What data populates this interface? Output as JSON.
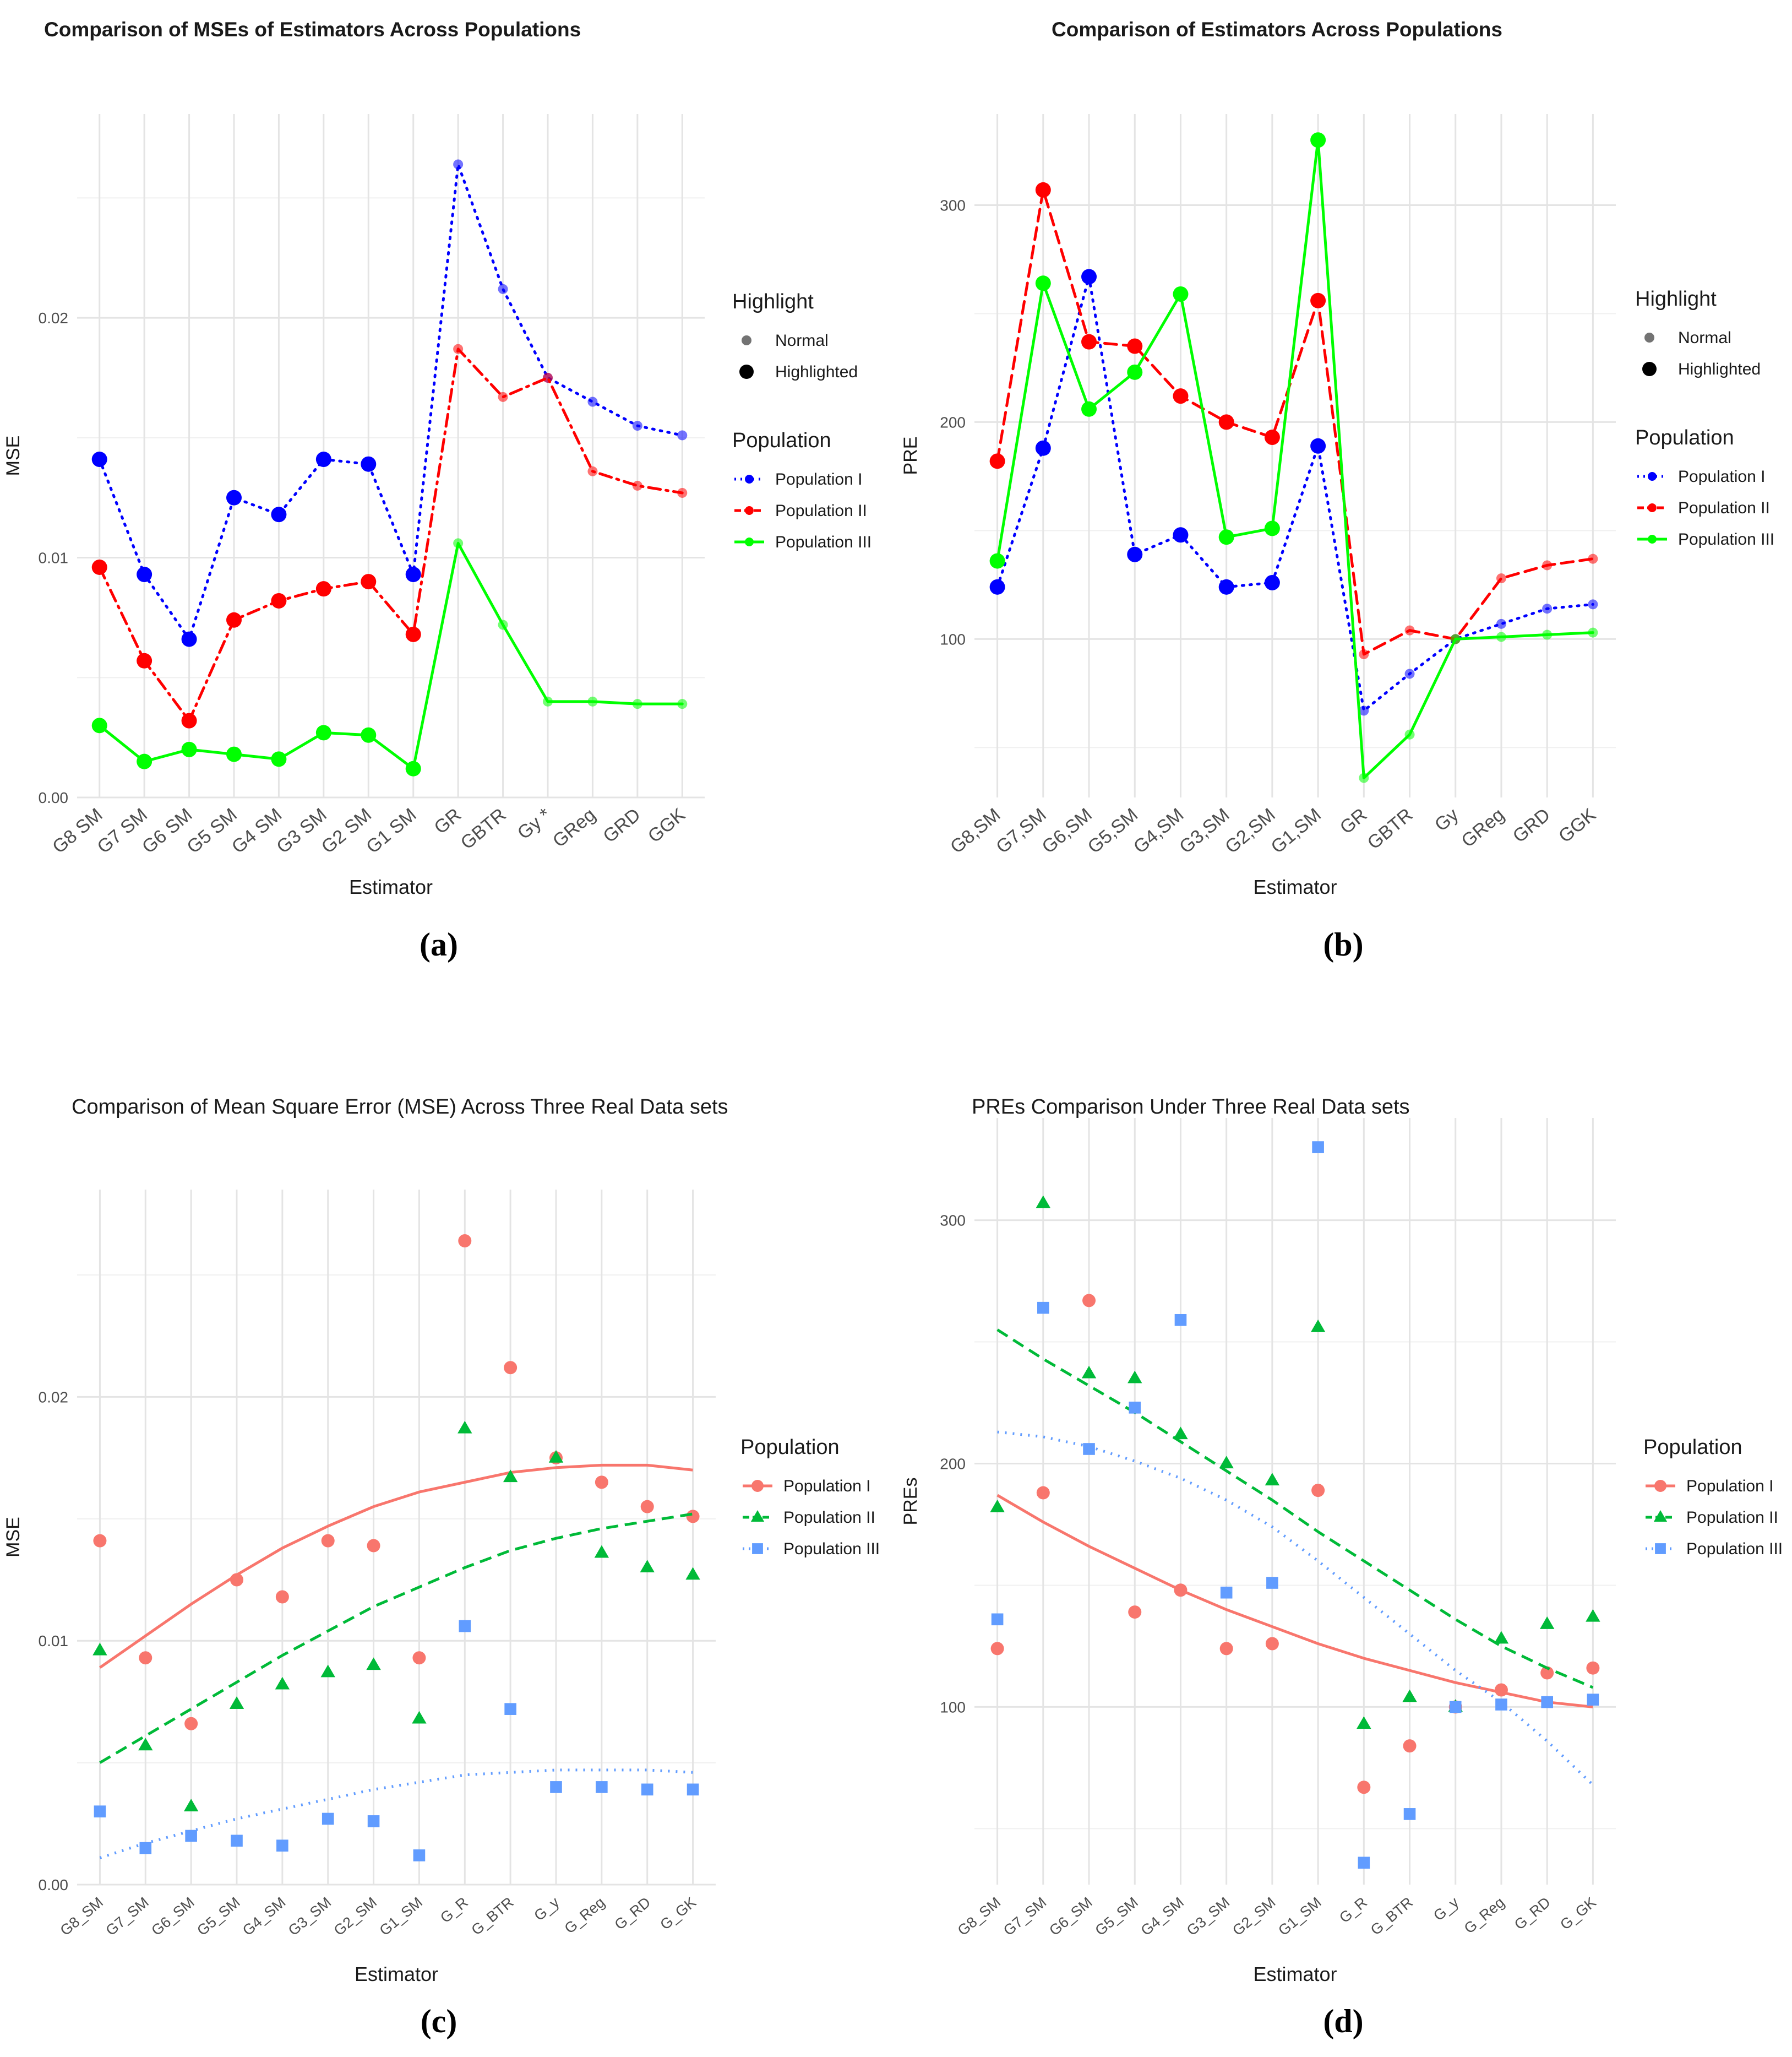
{
  "figure": {
    "panel_captions": [
      "(a)",
      "(b)",
      "(c)",
      "(d)"
    ]
  },
  "chart_data": [
    {
      "panel": "(a)",
      "type": "line",
      "title": "Comparison of MSEs of Estimators Across Populations",
      "xlabel": "Estimator",
      "ylabel": "MSE",
      "categories": [
        "G8 SM",
        "G7 SM",
        "G6 SM",
        "G5 SM",
        "G4 SM",
        "G3 SM",
        "G2 SM",
        "G1 SM",
        "GR",
        "GBTR",
        "Gy *",
        "GReg",
        "GRD",
        "GGK"
      ],
      "ylim": [
        0,
        0.0285
      ],
      "yticks": [
        0,
        0.01,
        0.02
      ],
      "ytick_labels": [
        "0.00",
        "0.01",
        "0.02"
      ],
      "grid": true,
      "series": [
        {
          "name": "Population I",
          "color": "#0000ff",
          "dash": "dotted",
          "values": [
            0.0141,
            0.0093,
            0.0066,
            0.0125,
            0.0118,
            0.0141,
            0.0139,
            0.0093,
            0.0264,
            0.0212,
            0.0175,
            0.0165,
            0.0155,
            0.0151
          ]
        },
        {
          "name": "Population II",
          "color": "#ff0000",
          "dash": "dashdot",
          "values": [
            0.0096,
            0.0057,
            0.0032,
            0.0074,
            0.0082,
            0.0087,
            0.009,
            0.0068,
            0.0187,
            0.0167,
            0.0175,
            0.0136,
            0.013,
            0.0127
          ]
        },
        {
          "name": "Population III",
          "color": "#00ff00",
          "dash": "solid",
          "values": [
            0.003,
            0.0015,
            0.002,
            0.0018,
            0.0016,
            0.0027,
            0.0026,
            0.0012,
            0.0106,
            0.0072,
            0.004,
            0.004,
            0.0039,
            0.0039
          ]
        }
      ],
      "highlighted_indices": [
        0,
        1,
        2,
        3,
        4,
        5,
        6,
        7
      ],
      "legend": {
        "position": "right",
        "highlight_title": "Highlight",
        "highlight_items": [
          "Normal",
          "Highlighted"
        ],
        "population_title": "Population",
        "population_items": [
          "Population I",
          "Population II",
          "Population III"
        ]
      }
    },
    {
      "panel": "(b)",
      "type": "line",
      "title": "Comparison of Estimators Across Populations",
      "xlabel": "Estimator",
      "ylabel": "PRE",
      "categories": [
        "G8,SM",
        "G7,SM",
        "G6,SM",
        "G5,SM",
        "G4,SM",
        "G3,SM",
        "G2,SM",
        "G1,SM",
        "GR",
        "GBTR",
        "Gy",
        "GReg",
        "GRD",
        "GGK"
      ],
      "ylim": [
        27,
        342
      ],
      "yticks": [
        100,
        200,
        300
      ],
      "ytick_labels": [
        "100",
        "200",
        "300"
      ],
      "grid": true,
      "series": [
        {
          "name": "Population I",
          "color": "#0000ff",
          "dash": "dotted",
          "values": [
            124,
            188,
            267,
            139,
            148,
            124,
            126,
            189,
            67,
            84,
            100,
            107,
            114,
            116
          ]
        },
        {
          "name": "Population II",
          "color": "#ff0000",
          "dash": "dashed",
          "values": [
            182,
            307,
            237,
            235,
            212,
            200,
            193,
            256,
            93,
            104,
            100,
            128,
            134,
            137
          ]
        },
        {
          "name": "Population III",
          "color": "#00ff00",
          "dash": "solid",
          "values": [
            136,
            264,
            206,
            223,
            259,
            147,
            151,
            330,
            36,
            56,
            100,
            101,
            102,
            103
          ]
        }
      ],
      "highlighted_indices": [
        0,
        1,
        2,
        3,
        4,
        5,
        6,
        7
      ],
      "legend": {
        "position": "right",
        "highlight_title": "Highlight",
        "highlight_items": [
          "Normal",
          "Highlighted"
        ],
        "population_title": "Population",
        "population_items": [
          "Population I",
          "Population II",
          "Population III"
        ]
      }
    },
    {
      "panel": "(c)",
      "type": "scatter",
      "title": "Comparison of Mean Square Error (MSE) Across Three Real Data sets",
      "xlabel": "Estimator",
      "ylabel": "MSE",
      "categories": [
        "G8_SM",
        "G7_SM",
        "G6_SM",
        "G5_SM",
        "G4_SM",
        "G3_SM",
        "G2_SM",
        "G1_SM",
        "G_R",
        "G_BTR",
        "G_y",
        "G_Reg",
        "G_RD",
        "G_GK"
      ],
      "ylim": [
        0,
        0.0285
      ],
      "yticks": [
        0,
        0.01,
        0.02
      ],
      "ytick_labels": [
        "0.00",
        "0.01",
        "0.02"
      ],
      "grid": true,
      "series": [
        {
          "name": "Population I",
          "color": "#f8766d",
          "marker": "circle",
          "dash": "solid",
          "values": [
            0.0141,
            0.0093,
            0.0066,
            0.0125,
            0.0118,
            0.0141,
            0.0139,
            0.0093,
            0.0264,
            0.0212,
            0.0175,
            0.0165,
            0.0155,
            0.0151
          ],
          "trend": [
            0.0089,
            0.0102,
            0.0115,
            0.0127,
            0.0138,
            0.0147,
            0.0155,
            0.0161,
            0.0165,
            0.0169,
            0.0171,
            0.0172,
            0.0172,
            0.017
          ]
        },
        {
          "name": "Population II",
          "color": "#00ba38",
          "marker": "triangle",
          "dash": "dashed",
          "values": [
            0.0096,
            0.0057,
            0.0032,
            0.0074,
            0.0082,
            0.0087,
            0.009,
            0.0068,
            0.0187,
            0.0167,
            0.0175,
            0.0136,
            0.013,
            0.0127
          ],
          "trend": [
            0.005,
            0.0061,
            0.0072,
            0.0083,
            0.0094,
            0.0104,
            0.0114,
            0.0122,
            0.013,
            0.0137,
            0.0142,
            0.0146,
            0.0149,
            0.0152
          ]
        },
        {
          "name": "Population III",
          "color": "#619cff",
          "marker": "square",
          "dash": "dotted",
          "values": [
            0.003,
            0.0015,
            0.002,
            0.0018,
            0.0016,
            0.0027,
            0.0026,
            0.0012,
            0.0106,
            0.0072,
            0.004,
            0.004,
            0.0039,
            0.0039
          ],
          "trend": [
            0.0011,
            0.0017,
            0.0022,
            0.0027,
            0.0031,
            0.0035,
            0.0039,
            0.0042,
            0.0045,
            0.0046,
            0.0047,
            0.0047,
            0.0047,
            0.0046
          ]
        }
      ],
      "legend": {
        "position": "right",
        "population_title": "Population",
        "population_items": [
          "Population I",
          "Population II",
          "Population III"
        ]
      }
    },
    {
      "panel": "(d)",
      "type": "scatter",
      "title": "PREs Comparison Under Three Real Data sets",
      "xlabel": "Estimator",
      "ylabel": "PREs",
      "categories": [
        "G8_SM",
        "G7_SM",
        "G6_SM",
        "G5_SM",
        "G4_SM",
        "G3_SM",
        "G2_SM",
        "G1_SM",
        "G_R",
        "G_BTR",
        "G_y",
        "G_Reg",
        "G_RD",
        "G_GK"
      ],
      "ylim": [
        27,
        342
      ],
      "yticks": [
        100,
        200,
        300
      ],
      "ytick_labels": [
        "100",
        "200",
        "300"
      ],
      "grid": true,
      "series": [
        {
          "name": "Population I",
          "color": "#f8766d",
          "marker": "circle",
          "dash": "solid",
          "values": [
            124,
            188,
            267,
            139,
            148,
            124,
            126,
            189,
            67,
            84,
            100,
            107,
            114,
            116
          ],
          "trend": [
            187,
            176,
            166,
            157,
            148,
            140,
            133,
            126,
            120,
            115,
            110,
            106,
            102,
            100
          ]
        },
        {
          "name": "Population II",
          "color": "#00ba38",
          "marker": "triangle",
          "dash": "dashed",
          "values": [
            182,
            307,
            237,
            235,
            212,
            200,
            193,
            256,
            93,
            104,
            100,
            128,
            134,
            137
          ],
          "trend": [
            255,
            243,
            232,
            221,
            209,
            197,
            185,
            172,
            160,
            148,
            136,
            125,
            116,
            108
          ]
        },
        {
          "name": "Population III",
          "color": "#619cff",
          "marker": "square",
          "dash": "dotted",
          "values": [
            136,
            264,
            206,
            223,
            259,
            147,
            151,
            330,
            36,
            56,
            100,
            101,
            102,
            103
          ],
          "trend": [
            213,
            211,
            207,
            201,
            194,
            185,
            174,
            160,
            145,
            130,
            115,
            102,
            86,
            68
          ]
        }
      ],
      "legend": {
        "position": "right",
        "population_title": "Population",
        "population_items": [
          "Population I",
          "Population II",
          "Population III"
        ]
      }
    }
  ]
}
